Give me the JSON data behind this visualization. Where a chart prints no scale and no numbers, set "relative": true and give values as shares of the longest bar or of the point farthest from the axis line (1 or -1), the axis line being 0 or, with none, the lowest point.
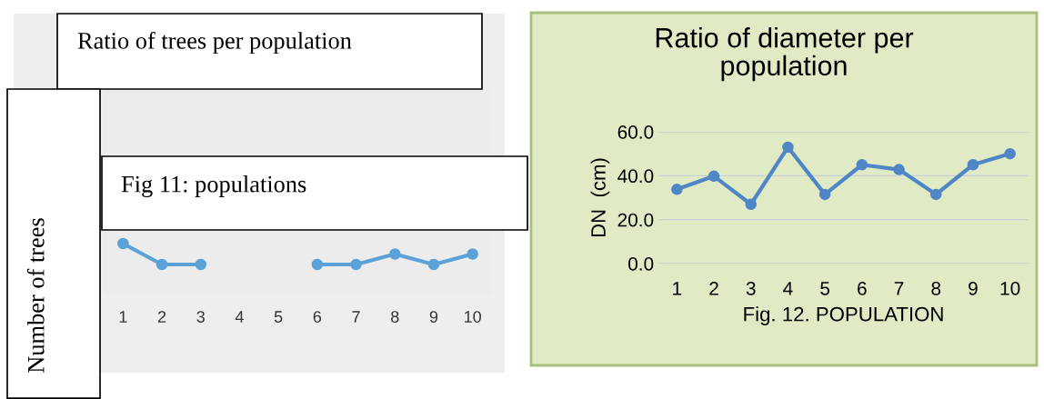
{
  "chart_data": [
    {
      "type": "line",
      "title": "Ratio of trees per population",
      "ylabel": "Number of trees",
      "annotations": [
        "Fig 11: populations"
      ],
      "categories": [
        "1",
        "2",
        "3",
        "4",
        "5",
        "6",
        "7",
        "8",
        "9",
        "10"
      ],
      "relative": true,
      "series": [
        {
          "color": "#5aa2d8",
          "values": [
            1,
            0,
            0,
            null,
            null,
            0,
            0,
            0.5,
            0,
            0.5
          ]
        }
      ],
      "marker": "circle",
      "line_style": "solid",
      "legend": false,
      "grid": false
    },
    {
      "type": "line",
      "title": "Ratio of diameter per population",
      "xlabel": "Fig. 12. POPULATION",
      "ylabel": "DN  (cm)",
      "categories": [
        "1",
        "2",
        "3",
        "4",
        "5",
        "6",
        "7",
        "8",
        "9",
        "10"
      ],
      "series": [
        {
          "color": "#4f86c6",
          "values": [
            33.8,
            39.8,
            27,
            53,
            31.5,
            45,
            42.8,
            31.5,
            45,
            50
          ]
        }
      ],
      "ylim": [
        0,
        60
      ],
      "yticks": [
        {
          "value": 0,
          "label": "0.0"
        },
        {
          "value": 20,
          "label": "20.0"
        },
        {
          "value": 40,
          "label": "40.0"
        },
        {
          "value": 60,
          "label": "60.0"
        }
      ],
      "marker": "circle",
      "line_style": "solid",
      "legend": false,
      "grid": "y"
    }
  ]
}
